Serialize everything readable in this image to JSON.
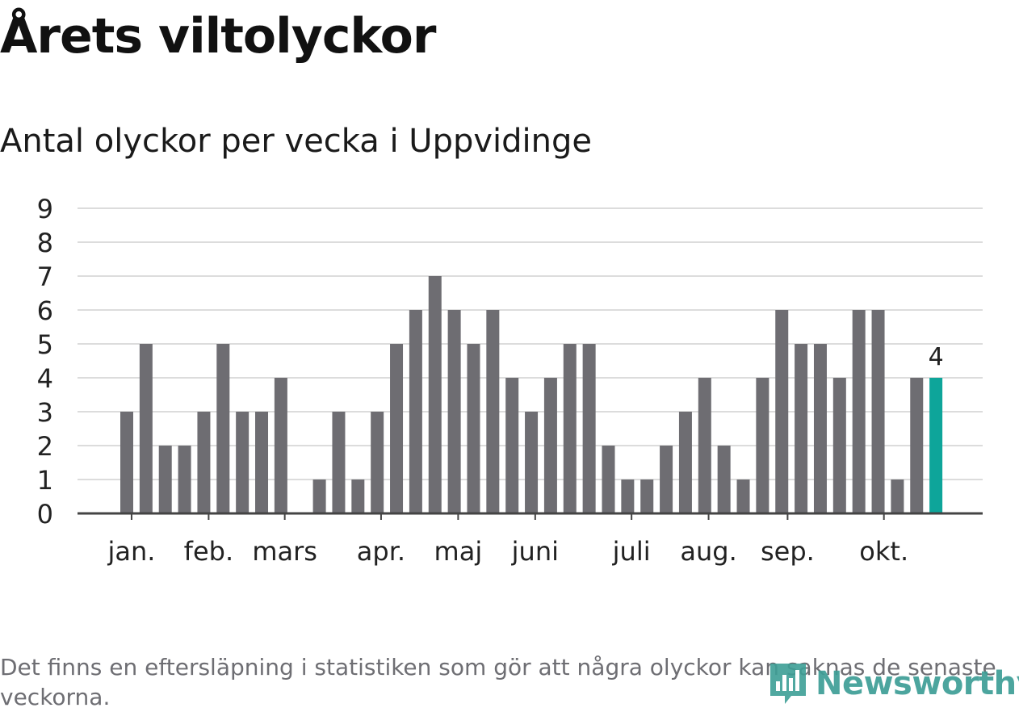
{
  "chart_data": {
    "type": "bar",
    "title": "Årets viltolyckor",
    "subtitle": "Antal olyckor per vecka i Uppvidinge",
    "xlabel": "",
    "ylabel": "",
    "ylim": [
      0,
      9
    ],
    "yticks": [
      "0",
      "1",
      "2",
      "3",
      "4",
      "5",
      "6",
      "7",
      "8",
      "9"
    ],
    "grid": true,
    "weeks": [
      1,
      2,
      3,
      4,
      5,
      6,
      7,
      8,
      9,
      10,
      11,
      12,
      13,
      14,
      15,
      16,
      17,
      18,
      19,
      20,
      21,
      22,
      23,
      24,
      25,
      26,
      27,
      28,
      29,
      30,
      31,
      32,
      33,
      34,
      35,
      36,
      37,
      38,
      39,
      40,
      41,
      42,
      43
    ],
    "values": [
      3,
      5,
      2,
      2,
      3,
      5,
      3,
      3,
      4,
      0,
      1,
      3,
      1,
      3,
      5,
      6,
      7,
      6,
      5,
      6,
      4,
      3,
      4,
      5,
      5,
      2,
      1,
      1,
      2,
      3,
      4,
      2,
      1,
      4,
      6,
      5,
      5,
      4,
      6,
      6,
      1,
      4,
      4
    ],
    "month_labels": [
      {
        "label": "jan.",
        "week": 1.25
      },
      {
        "label": "feb.",
        "week": 5.25
      },
      {
        "label": "mars",
        "week": 9.2
      },
      {
        "label": "apr.",
        "week": 14.2
      },
      {
        "label": "maj",
        "week": 18.2
      },
      {
        "label": "juni",
        "week": 22.2
      },
      {
        "label": "juli",
        "week": 27.2
      },
      {
        "label": "aug.",
        "week": 31.2
      },
      {
        "label": "sep.",
        "week": 35.3
      },
      {
        "label": "okt.",
        "week": 40.3
      }
    ],
    "highlight_label": "4",
    "bar_color": "#6e6d72",
    "highlight_color": "#0ea59a",
    "grid_color": "#dcdcdc",
    "axis_color": "#444444"
  },
  "footnote": "Det finns en eftersläpning i statistiken som gör att några olyckor kan saknas de senaste veckorna.",
  "logo": {
    "text": "Newsworthy",
    "icon": "newsworthy-logo-icon",
    "color": "#3d9e96"
  }
}
